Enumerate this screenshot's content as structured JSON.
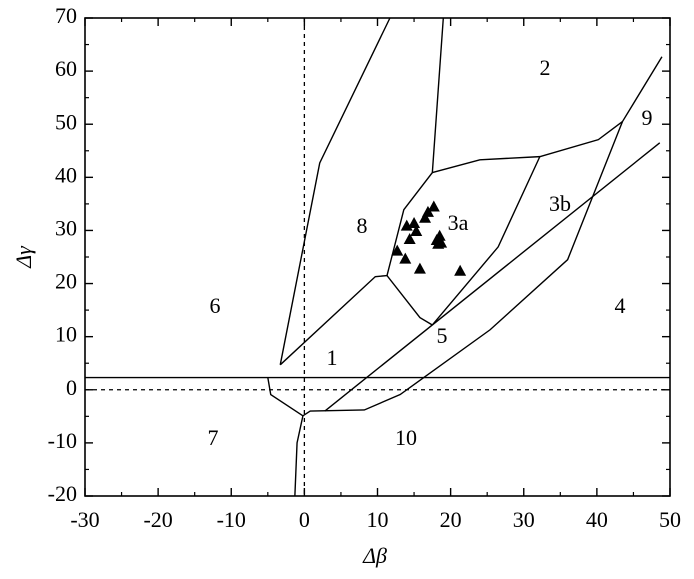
{
  "chart_data": {
    "type": "scatter",
    "xlabel": "Δβ",
    "ylabel": "Δγ",
    "xlim": [
      -30,
      50
    ],
    "ylim": [
      -20,
      70
    ],
    "xticks": [
      -30,
      -20,
      -10,
      0,
      10,
      20,
      30,
      40,
      50
    ],
    "yticks": [
      -20,
      -10,
      0,
      10,
      20,
      30,
      40,
      50,
      60,
      70
    ],
    "zero_lines": {
      "x": 0,
      "y": 0
    },
    "series": [
      {
        "color": "#000000",
        "x": [
          12.7,
          14.0,
          13.8,
          14.4,
          15.3,
          15.0,
          15.8,
          16.5,
          16.9,
          17.7,
          18.1,
          18.5,
          18.3,
          18.7,
          21.3
        ],
        "y": [
          26.2,
          30.9,
          24.7,
          28.4,
          29.9,
          31.4,
          22.8,
          32.4,
          33.5,
          34.5,
          28.2,
          29.0,
          27.5,
          27.7,
          22.4
        ]
      }
    ],
    "boundaries": [
      {
        "x": [
          -30,
          50
        ],
        "y": [
          2.3,
          2.3
        ]
      },
      {
        "x": [
          -3.3,
          2.1,
          11.7
        ],
        "y": [
          4.7,
          42.7,
          70
        ]
      },
      {
        "x": [
          -5,
          -4.6,
          -0.2
        ],
        "y": [
          2.3,
          -0.9,
          -4.9
        ]
      },
      {
        "x": [
          -3.3,
          9.7,
          11.3,
          15.8,
          17.5
        ],
        "y": [
          4.7,
          21.3,
          21.5,
          13.6,
          12.2
        ]
      },
      {
        "x": [
          2.8,
          48.6
        ],
        "y": [
          -4.0,
          46.5
        ]
      },
      {
        "x": [
          17.5,
          26.5,
          32.2
        ],
        "y": [
          12.2,
          26.9,
          43.9
        ]
      },
      {
        "x": [
          17.5,
          24,
          32.2,
          40.2,
          43.5,
          48.9
        ],
        "y": [
          40.9,
          43.3,
          43.9,
          47.1,
          50.5,
          62.7
        ]
      },
      {
        "x": [
          43.5,
          36,
          25.4,
          13.1,
          8.2,
          0.8,
          -0.2,
          -1.0,
          -1.3
        ],
        "y": [
          50.5,
          24.5,
          11.3,
          -0.9,
          -3.8,
          -4.0,
          -4.9,
          -10,
          -20
        ]
      },
      {
        "x": [
          11.3,
          13.6,
          17.5,
          19.0
        ],
        "y": [
          21.5,
          33.9,
          40.9,
          70
        ]
      }
    ],
    "region_labels": [
      "1",
      "2",
      "3a",
      "3b",
      "4",
      "5",
      "6",
      "7",
      "8",
      "9",
      "10"
    ]
  }
}
